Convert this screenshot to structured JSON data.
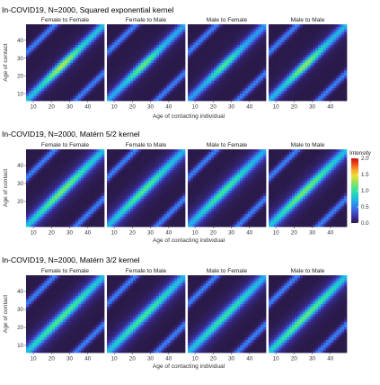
{
  "colors": {
    "ramp": [
      "#2a1a4a",
      "#3a2f9a",
      "#3f58d8",
      "#2f86ee",
      "#1fb6e6",
      "#22d8b8",
      "#4ee68a",
      "#9de05a",
      "#e8e23a",
      "#f8a62a",
      "#f04a1c",
      "#c80f0f"
    ],
    "panel_bg": "#2a1a4a",
    "strip_text": "#222222",
    "axis_text": "#333333"
  },
  "legend": {
    "title": "Intensity",
    "ticks": [
      "2.0",
      "1.5",
      "1.0",
      "0.5",
      "0.0"
    ]
  },
  "chart_data": [
    {
      "type": "heatmap",
      "title": "In-COVID19, N=2000, Squared exponential kernel",
      "panels": [
        "Female to Female",
        "Female to Male",
        "Male to Female",
        "Male to Male"
      ],
      "xlabel": "",
      "ylabel": "Age of contact",
      "x_ticks": [
        "10",
        "20",
        "30",
        "40"
      ],
      "y_ticks": [
        "10",
        "20",
        "30",
        "40"
      ],
      "xlim": [
        6,
        49
      ],
      "ylim": [
        6,
        49
      ],
      "kernel": "squared-exponential",
      "peak_intensity": [
        1.3,
        1.1,
        1.0,
        1.2
      ]
    },
    {
      "type": "heatmap",
      "title": "In-COVID19, N=2000, Matérn 5/2 kernel",
      "panels": [
        "Female to Female",
        "Female to Male",
        "Male to Female",
        "Male to Male"
      ],
      "xlabel": "Age of contacting individual",
      "ylabel": "Age of contact",
      "x_ticks": [
        "10",
        "20",
        "30",
        "40"
      ],
      "y_ticks": [
        "20",
        "30",
        "40"
      ],
      "xlim": [
        6,
        49
      ],
      "ylim": [
        6,
        49
      ],
      "kernel": "matern-5/2",
      "peak_intensity": [
        1.0,
        0.9,
        0.85,
        1.0
      ]
    },
    {
      "type": "heatmap",
      "title": "In-COVID19, N=2000, Matérn 3/2 kernel",
      "panels": [
        "Female to Female",
        "Female to Male",
        "Male to Female",
        "Male to Male"
      ],
      "xlabel": "Age of contacting individual",
      "ylabel": "Age of contact",
      "x_ticks": [
        "10",
        "20",
        "30",
        "40"
      ],
      "y_ticks": [
        "10",
        "20",
        "30",
        "40"
      ],
      "xlim": [
        6,
        49
      ],
      "ylim": [
        6,
        49
      ],
      "kernel": "matern-3/2",
      "peak_intensity": [
        0.9,
        0.85,
        0.8,
        0.95
      ]
    }
  ]
}
